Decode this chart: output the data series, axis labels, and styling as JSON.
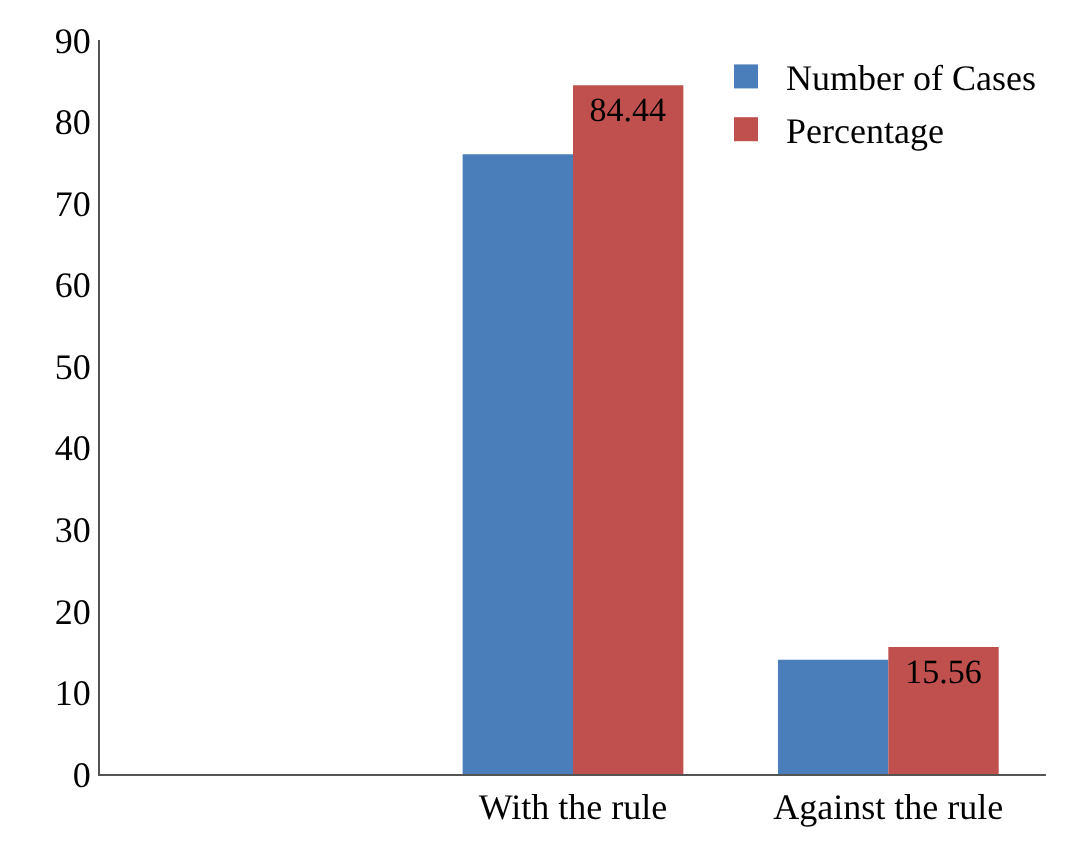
{
  "chart_data": {
    "type": "bar",
    "categories": [
      null,
      "With the rule",
      "Against the rule"
    ],
    "series": [
      {
        "name": "Number of Cases",
        "color": "#4a7ebb",
        "values": [
          null,
          76,
          14
        ]
      },
      {
        "name": "Percentage",
        "color": "#c0504d",
        "values": [
          null,
          84.44,
          15.56
        ],
        "value_labels": [
          null,
          "84.44",
          "15.56"
        ]
      }
    ],
    "ylim": [
      0,
      90
    ],
    "yticks": [
      0,
      10,
      20,
      30,
      40,
      50,
      60,
      70,
      80,
      90
    ],
    "legend": "top right"
  }
}
